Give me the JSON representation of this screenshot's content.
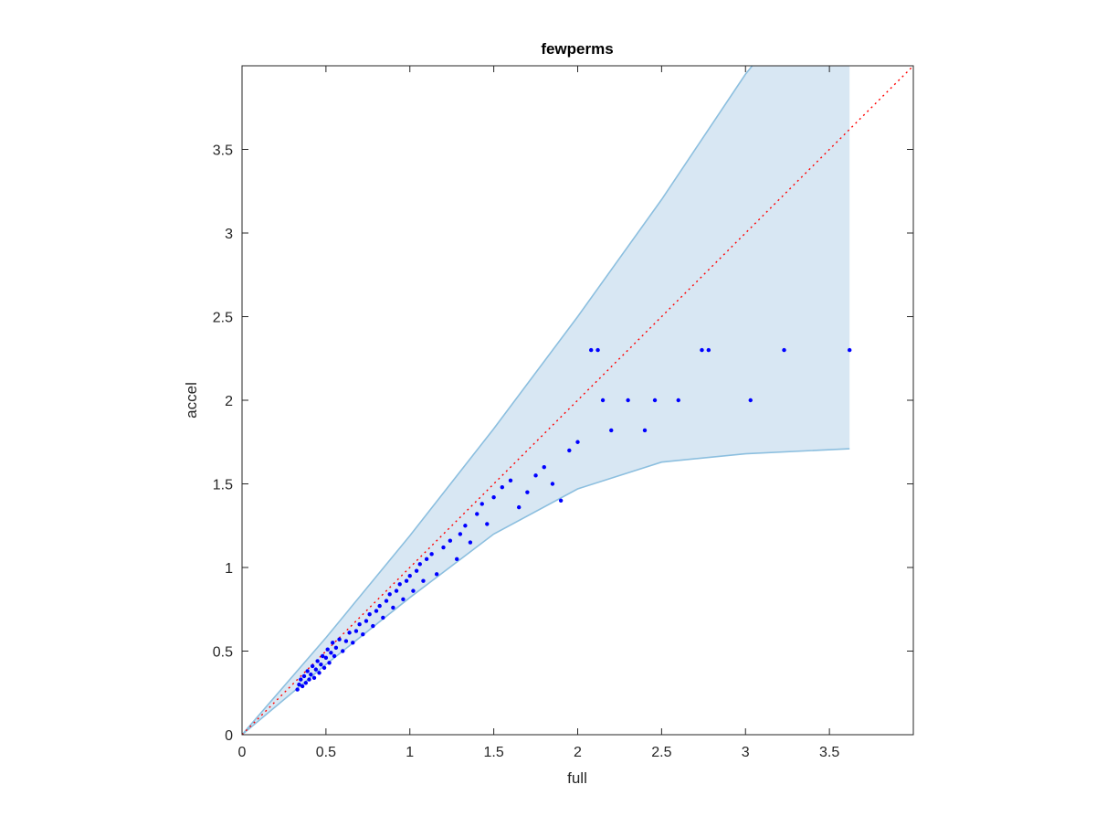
{
  "chart_data": {
    "type": "scatter",
    "title": "fewperms",
    "xlabel": "full",
    "ylabel": "accel",
    "xlim": [
      0,
      4
    ],
    "ylim": [
      0,
      4
    ],
    "xticks": [
      0,
      0.5,
      1,
      1.5,
      2,
      2.5,
      3,
      3.5
    ],
    "yticks": [
      0,
      0.5,
      1,
      1.5,
      2,
      2.5,
      3,
      3.5
    ],
    "xtick_labels": [
      "0",
      "0.5",
      "1",
      "1.5",
      "2",
      "2.5",
      "3",
      "3.5"
    ],
    "ytick_labels": [
      "0",
      "0.5",
      "1",
      "1.5",
      "2",
      "2.5",
      "3",
      "3.5"
    ],
    "grid": false,
    "colors": {
      "points": "#0000ff",
      "band_fill": "#d8e7f3",
      "band_edge": "#8cbfdf",
      "reference_line": "#ff0000",
      "axes": "#262626"
    },
    "band": {
      "upper": [
        [
          0,
          0
        ],
        [
          0.5,
          0.58
        ],
        [
          1,
          1.19
        ],
        [
          1.5,
          1.83
        ],
        [
          2,
          2.5
        ],
        [
          2.5,
          3.2
        ],
        [
          3,
          3.95
        ],
        [
          3.6,
          4.7
        ]
      ],
      "lower": [
        [
          0,
          0
        ],
        [
          0.5,
          0.42
        ],
        [
          1,
          0.82
        ],
        [
          1.5,
          1.2
        ],
        [
          2,
          1.47
        ],
        [
          2.5,
          1.63
        ],
        [
          3,
          1.68
        ],
        [
          3.62,
          1.71
        ]
      ]
    },
    "reference_line": [
      [
        0,
        0
      ],
      [
        4,
        4
      ]
    ],
    "points": [
      [
        0.33,
        0.27
      ],
      [
        0.34,
        0.3
      ],
      [
        0.35,
        0.33
      ],
      [
        0.36,
        0.29
      ],
      [
        0.37,
        0.35
      ],
      [
        0.38,
        0.31
      ],
      [
        0.39,
        0.38
      ],
      [
        0.4,
        0.33
      ],
      [
        0.41,
        0.36
      ],
      [
        0.42,
        0.41
      ],
      [
        0.43,
        0.34
      ],
      [
        0.44,
        0.39
      ],
      [
        0.45,
        0.44
      ],
      [
        0.46,
        0.37
      ],
      [
        0.47,
        0.42
      ],
      [
        0.48,
        0.47
      ],
      [
        0.49,
        0.4
      ],
      [
        0.5,
        0.46
      ],
      [
        0.51,
        0.51
      ],
      [
        0.52,
        0.43
      ],
      [
        0.53,
        0.49
      ],
      [
        0.54,
        0.55
      ],
      [
        0.55,
        0.47
      ],
      [
        0.56,
        0.52
      ],
      [
        0.58,
        0.57
      ],
      [
        0.6,
        0.5
      ],
      [
        0.62,
        0.56
      ],
      [
        0.64,
        0.61
      ],
      [
        0.66,
        0.55
      ],
      [
        0.68,
        0.62
      ],
      [
        0.7,
        0.66
      ],
      [
        0.72,
        0.6
      ],
      [
        0.74,
        0.68
      ],
      [
        0.76,
        0.72
      ],
      [
        0.78,
        0.65
      ],
      [
        0.8,
        0.74
      ],
      [
        0.82,
        0.77
      ],
      [
        0.84,
        0.7
      ],
      [
        0.86,
        0.8
      ],
      [
        0.88,
        0.84
      ],
      [
        0.9,
        0.76
      ],
      [
        0.92,
        0.86
      ],
      [
        0.94,
        0.9
      ],
      [
        0.96,
        0.81
      ],
      [
        0.98,
        0.92
      ],
      [
        1.0,
        0.95
      ],
      [
        1.02,
        0.86
      ],
      [
        1.04,
        0.98
      ],
      [
        1.06,
        1.02
      ],
      [
        1.08,
        0.92
      ],
      [
        1.1,
        1.05
      ],
      [
        1.13,
        1.08
      ],
      [
        1.16,
        0.96
      ],
      [
        1.2,
        1.12
      ],
      [
        1.24,
        1.16
      ],
      [
        1.28,
        1.05
      ],
      [
        1.3,
        1.2
      ],
      [
        1.33,
        1.25
      ],
      [
        1.36,
        1.15
      ],
      [
        1.4,
        1.32
      ],
      [
        1.43,
        1.38
      ],
      [
        1.46,
        1.26
      ],
      [
        1.5,
        1.42
      ],
      [
        1.55,
        1.48
      ],
      [
        1.6,
        1.52
      ],
      [
        1.65,
        1.36
      ],
      [
        1.7,
        1.45
      ],
      [
        1.75,
        1.55
      ],
      [
        1.8,
        1.6
      ],
      [
        1.85,
        1.5
      ],
      [
        1.9,
        1.4
      ],
      [
        1.95,
        1.7
      ],
      [
        2.0,
        1.75
      ],
      [
        2.08,
        2.3
      ],
      [
        2.12,
        2.3
      ],
      [
        2.15,
        2.0
      ],
      [
        2.2,
        1.82
      ],
      [
        2.3,
        2.0
      ],
      [
        2.4,
        1.82
      ],
      [
        2.46,
        2.0
      ],
      [
        2.6,
        2.0
      ],
      [
        2.74,
        2.3
      ],
      [
        2.78,
        2.3
      ],
      [
        3.03,
        2.0
      ],
      [
        3.23,
        2.3
      ],
      [
        3.62,
        2.3
      ]
    ]
  }
}
